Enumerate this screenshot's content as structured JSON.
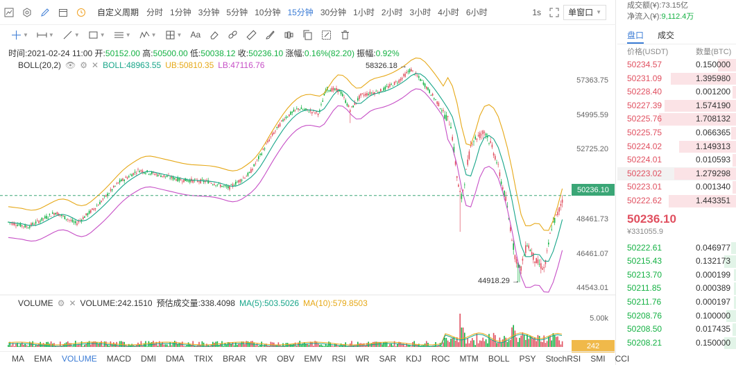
{
  "toolbar": {
    "custom_period": "自定义周期",
    "periods": [
      "分时",
      "1分钟",
      "3分钟",
      "5分钟",
      "10分钟",
      "15分钟",
      "30分钟",
      "1小时",
      "2小时",
      "3小时",
      "4小时",
      "6小时"
    ],
    "active_period_index": 5,
    "one_second": "1s",
    "window_mode": "单窗口",
    "draw_text_tool": "Aa"
  },
  "ohlc": {
    "time_label": "时间:",
    "time": "2021-02-24 11:00",
    "open_label": "开:",
    "open": "50152.00",
    "high_label": "高:",
    "high": "50500.00",
    "low_label": "低:",
    "low": "50038.12",
    "close_label": "收:",
    "close": "50236.10",
    "change_label": "涨幅:",
    "change": "0.16%(82.20)",
    "amp_label": "振幅:",
    "amp": "0.92%"
  },
  "boll": {
    "title": "BOLL(20,2)",
    "mid": "BOLL:48963.55",
    "ub": "UB:50810.35",
    "lb": "LB:47116.76"
  },
  "volume": {
    "title": "VOLUME",
    "value": "VOLUME:242.1510",
    "estimate": "预估成交量:338.4098",
    "ma5": "MA(5):503.5026",
    "ma10": "MA(10):579.8503",
    "axis_label": "5.00k",
    "current_tag": "242"
  },
  "price_axis": [
    "57363.75",
    "54995.59",
    "52725.20",
    "50236.10",
    "48461.73",
    "46461.07",
    "44543.01"
  ],
  "current_price_tag": "50236.10",
  "annotations": {
    "high": "58326.18",
    "low": "44918.29"
  },
  "indicators": [
    "MA",
    "EMA",
    "VOLUME",
    "MACD",
    "DMI",
    "DMA",
    "TRIX",
    "BRAR",
    "VR",
    "OBV",
    "EMV",
    "RSI",
    "WR",
    "SAR",
    "KDJ",
    "ROC",
    "MTM",
    "BOLL",
    "PSY",
    "StochRSI",
    "SMI",
    "CCI"
  ],
  "active_indicator_index": 2,
  "colors": {
    "up": "#14b143",
    "down": "#e04f5f",
    "boll_mid": "#17a589",
    "boll_ub": "#e6a817",
    "boll_lb": "#c64fc6",
    "accent": "#3a7bd5"
  },
  "orderbook": {
    "turnover_label": "成交额(¥):",
    "turnover": "73.15亿",
    "netflow_label": "净流入(¥):",
    "netflow": "9,112.4万",
    "tabs": [
      "盘口",
      "成交"
    ],
    "active_tab_index": 0,
    "price_header": "价格(USDT)",
    "qty_header": "数量(BTC)",
    "asks": [
      {
        "p": "50234.57",
        "q": "0.150000",
        "w": 0.15
      },
      {
        "p": "50231.09",
        "q": "1.395980",
        "w": 0.55
      },
      {
        "p": "50228.40",
        "q": "0.001200",
        "w": 0.03
      },
      {
        "p": "50227.39",
        "q": "1.574190",
        "w": 0.6
      },
      {
        "p": "50225.76",
        "q": "1.708132",
        "w": 0.65
      },
      {
        "p": "50225.75",
        "q": "0.066365",
        "w": 0.04
      },
      {
        "p": "50224.02",
        "q": "1.149313",
        "w": 0.48
      },
      {
        "p": "50224.01",
        "q": "0.010593",
        "w": 0.03
      },
      {
        "p": "50223.02",
        "q": "1.279298",
        "w": 0.52
      },
      {
        "p": "50223.01",
        "q": "0.001340",
        "w": 0.03
      },
      {
        "p": "50222.62",
        "q": "1.443351",
        "w": 0.57
      }
    ],
    "last_price": "50236.10",
    "last_fiat": "¥331055.9",
    "bids": [
      {
        "p": "50222.61",
        "q": "0.046977",
        "w": 0.04
      },
      {
        "p": "50215.43",
        "q": "0.132173",
        "w": 0.1
      },
      {
        "p": "50213.70",
        "q": "0.000199",
        "w": 0.02
      },
      {
        "p": "50211.85",
        "q": "0.000389",
        "w": 0.02
      },
      {
        "p": "50211.76",
        "q": "0.000197",
        "w": 0.02
      },
      {
        "p": "50208.76",
        "q": "0.100000",
        "w": 0.08
      },
      {
        "p": "50208.50",
        "q": "0.017435",
        "w": 0.03
      },
      {
        "p": "50208.21",
        "q": "0.150000",
        "w": 0.1
      }
    ]
  }
}
